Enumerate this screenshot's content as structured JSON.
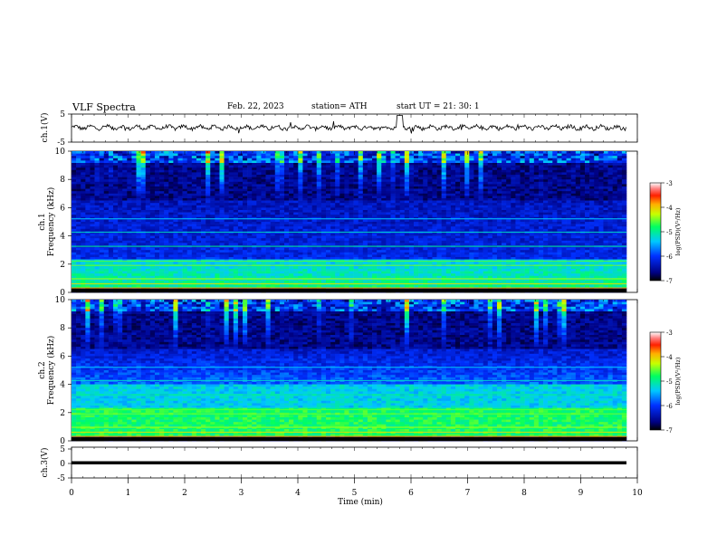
{
  "header": {
    "title": "VLF  Spectra",
    "date": "Feb. 22, 2023",
    "station": "station= ATH",
    "start": "start  UT  =   21: 30: 1"
  },
  "chart_data": [
    {
      "type": "line",
      "name": "ch1-waveform",
      "ylabel": "ch.1(V)",
      "ylim": [
        -5,
        5
      ],
      "yticks": [
        "5",
        "-5"
      ],
      "color": "#000000",
      "x_range": [
        0,
        9.8
      ],
      "baseline": 0.2,
      "amplitude_description": "continuous noisy trace around 0 V with spikes to about +5 V near 5.8 min"
    },
    {
      "type": "heatmap",
      "name": "ch1-spectrogram",
      "ylabel": "ch.1\nFrequency (kHz)",
      "ylabel_lines": [
        "ch.1",
        "Frequency (kHz)"
      ],
      "ylim": [
        0,
        10
      ],
      "yticks": [
        "0",
        "2",
        "4",
        "6",
        "8",
        "10"
      ],
      "xlim": [
        0,
        10
      ],
      "colorbar": {
        "label": "log(PSD)(V²/Hz)",
        "ticks": [
          "-3",
          "-4",
          "-5",
          "-6",
          "-7"
        ],
        "range": [
          -7,
          -3
        ]
      }
    },
    {
      "type": "heatmap",
      "name": "ch2-spectrogram",
      "ylabel": "ch.2\nFrequency (kHz)",
      "ylabel_lines": [
        "ch.2",
        "Frequency (kHz)"
      ],
      "ylim": [
        0,
        10
      ],
      "yticks": [
        "0",
        "2",
        "4",
        "6",
        "8",
        "10"
      ],
      "xlim": [
        0,
        10
      ],
      "colorbar": {
        "label": "log(PSD)(V²/Hz)",
        "ticks": [
          "-3",
          "-4",
          "-5",
          "-6",
          "-7"
        ],
        "range": [
          -7,
          -3
        ]
      }
    },
    {
      "type": "line",
      "name": "ch3-waveform",
      "ylabel": "ch.3(V)",
      "ylim": [
        -5,
        5
      ],
      "yticks": [
        "5",
        "0",
        "-5"
      ],
      "color": "#000000",
      "x_range": [
        0,
        9.8
      ],
      "baseline": 0
    }
  ],
  "xaxis": {
    "label": "Time  (min)",
    "ticks": [
      "0",
      "1",
      "2",
      "3",
      "4",
      "5",
      "6",
      "7",
      "8",
      "9",
      "10"
    ],
    "xlim": [
      0,
      10
    ]
  }
}
